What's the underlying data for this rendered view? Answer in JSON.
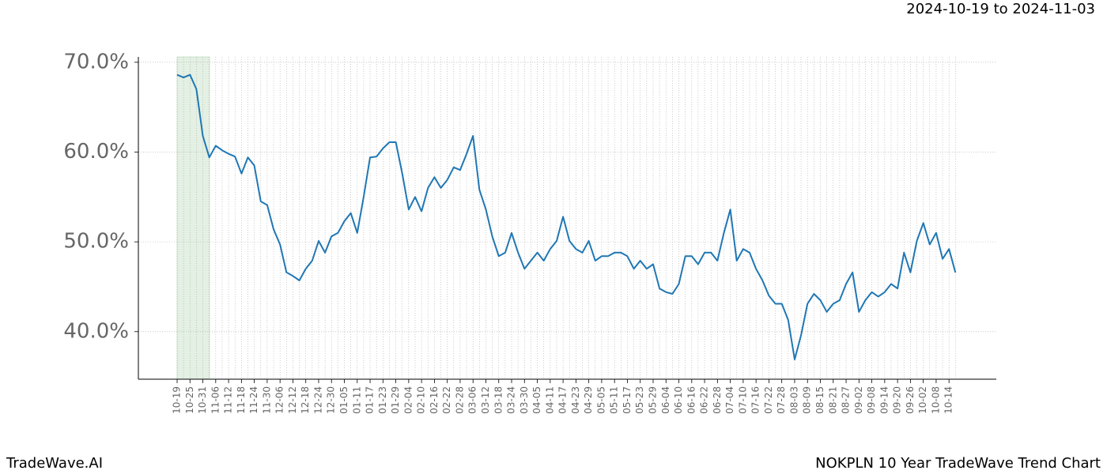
{
  "chart_data": {
    "type": "line",
    "subtitle": "2024-10-19 to 2024-11-03",
    "title": "NOKPLN 10 Year TradeWave Trend Chart",
    "brand": "TradeWave.AI",
    "categories": [
      "10-19",
      null,
      "10-25",
      null,
      "10-31",
      null,
      "11-06",
      null,
      "11-12",
      null,
      "11-18",
      null,
      "11-24",
      null,
      "11-30",
      null,
      "12-06",
      null,
      "12-12",
      null,
      "12-18",
      null,
      "12-24",
      null,
      "12-30",
      null,
      "01-05",
      null,
      "01-11",
      null,
      "01-17",
      null,
      "01-23",
      null,
      "01-29",
      null,
      "02-04",
      null,
      "02-10",
      null,
      "02-16",
      null,
      "02-22",
      null,
      "02-28",
      null,
      "03-06",
      null,
      "03-12",
      null,
      "03-18",
      null,
      "03-24",
      null,
      "03-30",
      null,
      "04-05",
      null,
      "04-11",
      null,
      "04-17",
      null,
      "04-23",
      null,
      "04-29",
      null,
      "05-05",
      null,
      "05-11",
      null,
      "05-17",
      null,
      "05-23",
      null,
      "05-29",
      null,
      "06-04",
      null,
      "06-10",
      null,
      "06-16",
      null,
      "06-22",
      null,
      "06-28",
      null,
      "07-04",
      null,
      "07-10",
      null,
      "07-16",
      null,
      "07-22",
      null,
      "07-28",
      null,
      "08-03",
      null,
      "08-09",
      null,
      "08-15",
      null,
      "08-21",
      null,
      "08-27",
      null,
      "09-02",
      null,
      "09-08",
      null,
      "09-14",
      null,
      "09-20",
      null,
      "09-26",
      null,
      "10-02",
      null,
      "10-08",
      null,
      "10-14",
      null
    ],
    "series": [
      {
        "color": "#1f77b4",
        "values": [
          68.6,
          68.3,
          68.6,
          67.0,
          61.8,
          59.4,
          60.7,
          60.2,
          59.8,
          59.5,
          57.6,
          59.4,
          58.5,
          54.5,
          54.1,
          51.4,
          49.7,
          46.6,
          46.2,
          45.7,
          47.0,
          47.9,
          50.1,
          48.8,
          50.6,
          51.0,
          52.3,
          53.2,
          51.0,
          55.0,
          59.4,
          59.5,
          60.4,
          61.1,
          61.1,
          57.6,
          53.6,
          55.0,
          53.4,
          56.0,
          57.2,
          56.0,
          56.9,
          58.3,
          58.0,
          59.8,
          61.8,
          55.8,
          53.6,
          50.6,
          48.4,
          48.8,
          51.0,
          48.8,
          47.0,
          47.9,
          48.8,
          47.9,
          49.2,
          50.1,
          52.8,
          50.1,
          49.2,
          48.8,
          50.1,
          47.9,
          48.4,
          48.4,
          48.8,
          48.8,
          48.4,
          47.0,
          47.9,
          47.0,
          47.5,
          44.8,
          44.4,
          44.2,
          45.3,
          48.4,
          48.4,
          47.5,
          48.8,
          48.8,
          47.9,
          51.0,
          53.6,
          47.9,
          49.2,
          48.8,
          47.0,
          45.7,
          44.0,
          43.1,
          43.1,
          41.3,
          36.9,
          39.6,
          43.1,
          44.2,
          43.5,
          42.2,
          43.1,
          43.5,
          45.3,
          46.6,
          42.2,
          43.5,
          44.4,
          43.9,
          44.4,
          45.3,
          44.8,
          48.8,
          46.6,
          50.1,
          52.1,
          49.7,
          51.0,
          48.1,
          49.2,
          46.6
        ]
      }
    ],
    "ylim": [
      34.7,
      70.6
    ],
    "yticks": [
      {
        "value": 40,
        "label": "40.0%"
      },
      {
        "value": 50,
        "label": "50.0%"
      },
      {
        "value": 60,
        "label": "60.0%"
      },
      {
        "value": 70,
        "label": "70.0%"
      }
    ],
    "grid": true
  }
}
